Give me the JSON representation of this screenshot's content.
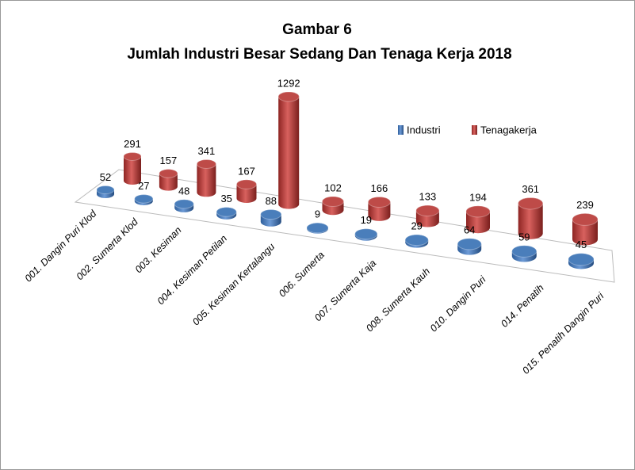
{
  "chart_data": {
    "type": "cylinder3d",
    "title": "Gambar 6",
    "subtitle": "Jumlah Industri Besar Sedang Dan Tenaga Kerja 2018",
    "categories": [
      "001. Dangin Puri Klod",
      "002. Sumerta Klod",
      "003. Kesiman",
      "004. Kesiman Petilan",
      "005. Kesiman Kertalangu",
      "006. Sumerta",
      "007. Sumerta Kaja",
      "008. Sumerta Kauh",
      "010. Dangin Puri",
      "014. Penatih",
      "015. Penatih Dangin Puri"
    ],
    "series": [
      {
        "name": "Industri",
        "color": "#4a7ebb",
        "values": [
          52,
          27,
          48,
          35,
          88,
          9,
          19,
          29,
          64,
          59,
          45
        ]
      },
      {
        "name": "Tenagakerja",
        "color": "#be4b48",
        "values": [
          291,
          157,
          341,
          167,
          1292,
          102,
          166,
          133,
          194,
          361,
          239
        ]
      }
    ],
    "legend": "top-right"
  }
}
